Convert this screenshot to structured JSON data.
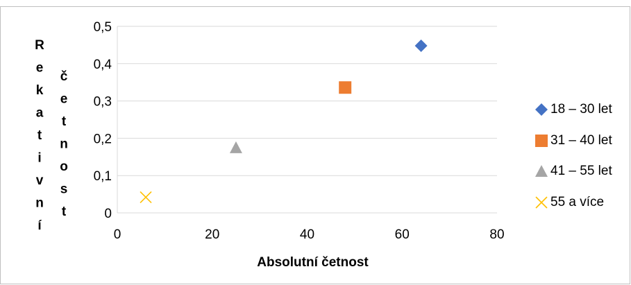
{
  "chart_data": {
    "type": "scatter",
    "title": "",
    "xlabel": "Absolutní četnost",
    "ylabel": "Rekativní četnost",
    "xlim": [
      0,
      80
    ],
    "ylim": [
      0,
      0.5
    ],
    "x_ticks": [
      "0",
      "20",
      "40",
      "60",
      "80"
    ],
    "y_ticks": [
      "0",
      "0,1",
      "0,2",
      "0,3",
      "0,4",
      "0,5"
    ],
    "grid": "horizontal",
    "legend_position": "right",
    "series": [
      {
        "name": "18 – 30 let",
        "marker": "diamond",
        "color": "#4472c4",
        "x": [
          64
        ],
        "y": [
          0.448
        ]
      },
      {
        "name": "31 – 40 let",
        "marker": "square",
        "color": "#ed7d31",
        "x": [
          48
        ],
        "y": [
          0.336
        ]
      },
      {
        "name": "41 – 55 let",
        "marker": "triangle",
        "color": "#a5a5a5",
        "x": [
          25
        ],
        "y": [
          0.175
        ]
      },
      {
        "name": "55 a více",
        "marker": "x",
        "color": "#ffc000",
        "x": [
          6
        ],
        "y": [
          0.042
        ]
      }
    ]
  }
}
